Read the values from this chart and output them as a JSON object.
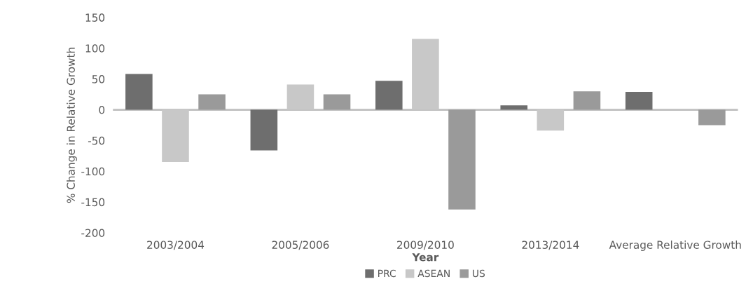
{
  "chart_data": {
    "type": "bar",
    "xlabel": "Year",
    "ylabel": "% Change in Relative Growth",
    "categories": [
      "2003/2004",
      "2005/2006",
      "2009/2010",
      "2013/2014",
      "Average Relative Growth"
    ],
    "series": [
      {
        "name": "PRC",
        "color": "#6e6e6e",
        "values": [
          58,
          -66,
          47,
          7,
          29
        ]
      },
      {
        "name": "ASEAN",
        "color": "#c8c8c8",
        "values": [
          -85,
          41,
          115,
          -34,
          null
        ]
      },
      {
        "name": "US",
        "color": "#9a9a9a",
        "values": [
          25,
          25,
          -162,
          30,
          -25
        ]
      }
    ],
    "ylim": [
      -200,
      150
    ],
    "yticks": [
      -200,
      -150,
      -100,
      -50,
      0,
      50,
      100,
      150
    ],
    "grid": false,
    "legend": "bottom",
    "ref_lines": [
      {
        "axis": "y",
        "value": 0,
        "color": "#bfbfbf"
      }
    ]
  }
}
